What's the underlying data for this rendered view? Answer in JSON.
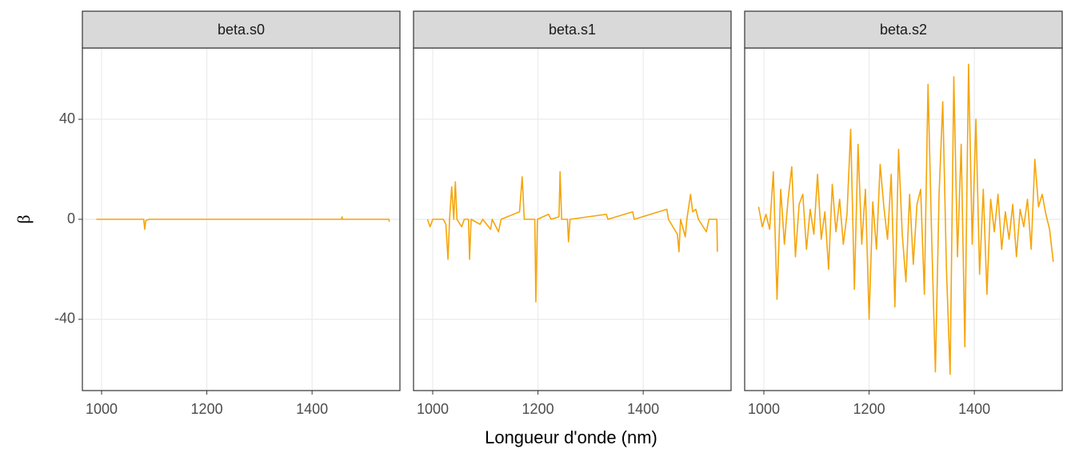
{
  "xlabel": "Longueur d'onde (nm)",
  "ylabel": "β",
  "chart_data": [
    {
      "type": "line",
      "title": "beta.s0",
      "color": "#f5a50a",
      "grid": true,
      "xlim": [
        963.5,
        1567
      ],
      "ylim": [
        -68.5,
        68.5
      ],
      "xticks": [
        1000,
        1200,
        1400
      ],
      "yticks": [
        -40,
        0,
        40
      ],
      "x": [
        990,
        1080,
        1082,
        1084,
        1090,
        1456,
        1457,
        1458,
        1546,
        1547
      ],
      "values": [
        0,
        0,
        -4,
        -0.5,
        0,
        0,
        1,
        0,
        0,
        -1
      ]
    },
    {
      "type": "line",
      "title": "beta.s1",
      "color": "#f5a50a",
      "grid": true,
      "xlim": [
        963.5,
        1567
      ],
      "ylim": [
        -68.5,
        68.5
      ],
      "xticks": [
        1000,
        1200,
        1400
      ],
      "yticks": [
        -40,
        0,
        40
      ],
      "x": [
        990,
        995,
        1000,
        1020,
        1025,
        1029,
        1032,
        1036,
        1040,
        1043,
        1046,
        1055,
        1060,
        1068,
        1070,
        1073,
        1090,
        1095,
        1110,
        1113,
        1125,
        1130,
        1165,
        1170,
        1174,
        1194,
        1196,
        1199,
        1220,
        1225,
        1240,
        1242,
        1245,
        1256,
        1258,
        1261,
        1330,
        1333,
        1380,
        1383,
        1445,
        1448,
        1465,
        1468,
        1471,
        1480,
        1483,
        1490,
        1494,
        1500,
        1505,
        1520,
        1525,
        1540,
        1541
      ],
      "values": [
        0,
        -3,
        0,
        0,
        -2,
        -16,
        0,
        13,
        0,
        15,
        0,
        -3,
        0,
        0,
        -16,
        0,
        -2,
        0,
        -4,
        0,
        -5,
        0,
        3,
        17,
        0,
        0,
        -33,
        0,
        2,
        0,
        1,
        19,
        0,
        0,
        -9,
        0,
        2,
        0,
        3,
        0,
        4,
        0,
        -6,
        -13,
        0,
        -7,
        0,
        10,
        3,
        4,
        0,
        -5,
        0,
        0,
        -13
      ]
    },
    {
      "type": "line",
      "title": "beta.s2",
      "color": "#f5a50a",
      "grid": true,
      "xlim": [
        963.5,
        1567
      ],
      "ylim": [
        -68.5,
        68.5
      ],
      "xticks": [
        1000,
        1200,
        1400
      ],
      "yticks": [
        -40,
        0,
        40
      ],
      "x": [
        990,
        997,
        1004,
        1011,
        1018,
        1025,
        1032,
        1039,
        1046,
        1053,
        1060,
        1067,
        1074,
        1081,
        1088,
        1095,
        1102,
        1109,
        1116,
        1123,
        1130,
        1137,
        1144,
        1151,
        1158,
        1165,
        1172,
        1179,
        1186,
        1193,
        1200,
        1207,
        1214,
        1221,
        1228,
        1235,
        1242,
        1249,
        1256,
        1263,
        1270,
        1277,
        1284,
        1291,
        1298,
        1305,
        1312,
        1319,
        1326,
        1333,
        1340,
        1347,
        1354,
        1361,
        1368,
        1375,
        1382,
        1389,
        1396,
        1403,
        1410,
        1417,
        1424,
        1431,
        1438,
        1445,
        1452,
        1459,
        1466,
        1473,
        1480,
        1487,
        1494,
        1501,
        1508,
        1515,
        1522,
        1529,
        1536,
        1543,
        1550
      ],
      "values": [
        5,
        -3,
        2,
        -4,
        19,
        -32,
        12,
        -10,
        8,
        21,
        -15,
        6,
        10,
        -12,
        4,
        -6,
        18,
        -8,
        3,
        -20,
        14,
        -5,
        8,
        -10,
        2,
        36,
        -28,
        30,
        -10,
        12,
        -40,
        7,
        -12,
        22,
        5,
        -8,
        18,
        -35,
        28,
        -6,
        -25,
        10,
        -18,
        6,
        12,
        -30,
        54,
        -8,
        -61,
        10,
        47,
        -20,
        -62,
        57,
        -15,
        30,
        -51,
        62,
        -10,
        40,
        -22,
        12,
        -30,
        8,
        -5,
        10,
        -12,
        3,
        -8,
        6,
        -15,
        4,
        -3,
        8,
        -12,
        24,
        5,
        10,
        2,
        -4,
        -17
      ]
    }
  ]
}
